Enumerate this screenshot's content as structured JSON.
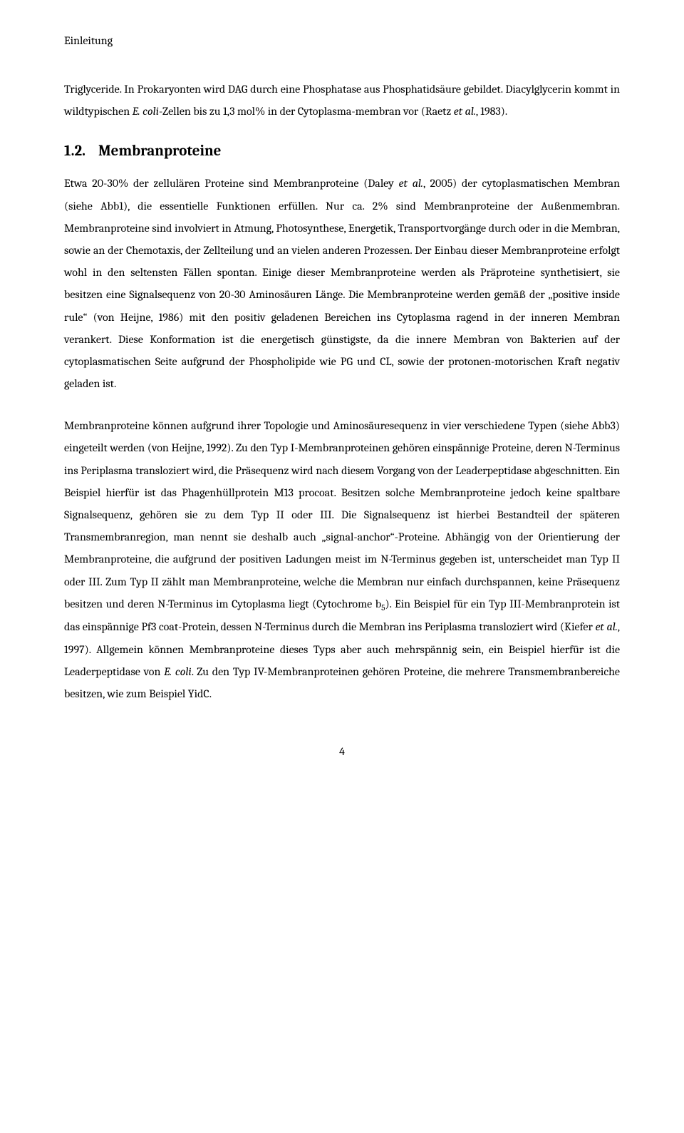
{
  "header": "Einleitung",
  "para1_pre": "Triglyceride. In Prokaryonten wird DAG durch eine Phosphatase aus Phosphatidsäure gebildet. Diacylglycerin kommt in wildtypischen ",
  "para1_it1": "E. coli",
  "para1_mid": "-Zellen bis zu 1,3 mol% in der Cytoplasma-membran vor (Raetz ",
  "para1_it2": "et al.",
  "para1_post": ", 1983).",
  "section_num": "1.2.",
  "section_title": "Membranproteine",
  "para2_a": "Etwa 20-30% der zellulären Proteine sind Membranproteine (Daley ",
  "para2_it1": "et al.",
  "para2_b": ", 2005) der cytoplasmatischen Membran (siehe Abb1), die essentielle Funktionen erfüllen. Nur ca. 2% sind Membranproteine der Außenmembran. Membranproteine sind involviert in Atmung, Photosynthese, Energetik, Transportvorgänge durch oder in die Membran, sowie an der Chemotaxis, der Zellteilung und an vielen anderen Prozessen. Der Einbau dieser Membranproteine erfolgt wohl in den seltensten Fällen spontan. Einige dieser Membranproteine werden als Präproteine synthetisiert, sie besitzen eine Signalsequenz von 20-30 Aminosäuren Länge. Die Membranproteine werden gemäß der „positive inside rule“ (von Heijne, 1986) mit den positiv geladenen Bereichen ins Cytoplasma ragend in der inneren Membran verankert. Diese Konformation ist die energetisch günstigste, da die innere Membran von Bakterien auf der cytoplasmatischen Seite aufgrund der Phospholipide wie PG und CL, sowie der protonen-motorischen Kraft negativ geladen ist.",
  "para3_a": "Membranproteine können aufgrund ihrer Topologie und Aminosäuresequenz in vier verschiedene Typen (siehe Abb3) eingeteilt werden (von Heijne, 1992). Zu den Typ I-Membranproteinen gehören einspännige Proteine, deren N-Terminus ins Periplasma transloziert wird, die Präsequenz wird nach diesem Vorgang von der Leaderpeptidase abgeschnitten. Ein Beispiel hierfür ist das Phagenhüllprotein M13 procoat. Besitzen solche Membranproteine jedoch keine spaltbare Signalsequenz, gehören sie zu dem Typ II oder III. Die Signalsequenz ist hierbei Bestandteil der späteren Transmembranregion, man nennt sie deshalb auch „signal-anchor“-Proteine. Abhängig von der Orientierung der Membranproteine, die aufgrund der positiven Ladungen meist im N-Terminus gegeben ist, unterscheidet man Typ II oder III. Zum Typ II zählt man Membranproteine, welche die Membran nur einfach durchspannen, keine Präsequenz besitzen und deren N-Terminus im Cytoplasma liegt (Cytochrome b",
  "para3_sub": "5",
  "para3_b": "). Ein Beispiel für ein Typ III-Membranprotein ist das einspännige Pf3 coat-Protein, dessen N-Terminus durch die Membran ins Periplasma transloziert wird (Kiefer ",
  "para3_it1": "et al.",
  "para3_c": ", 1997). Allgemein können Membranproteine dieses Typs aber auch mehrspännig sein, ein Beispiel hierfür ist die Leaderpeptidase von ",
  "para3_it2": "E. coli",
  "para3_d": ". Zu den Typ IV-Membranproteinen gehören Proteine, die mehrere Transmembranbereiche besitzen, wie zum Beispiel YidC.",
  "page_number": "4"
}
